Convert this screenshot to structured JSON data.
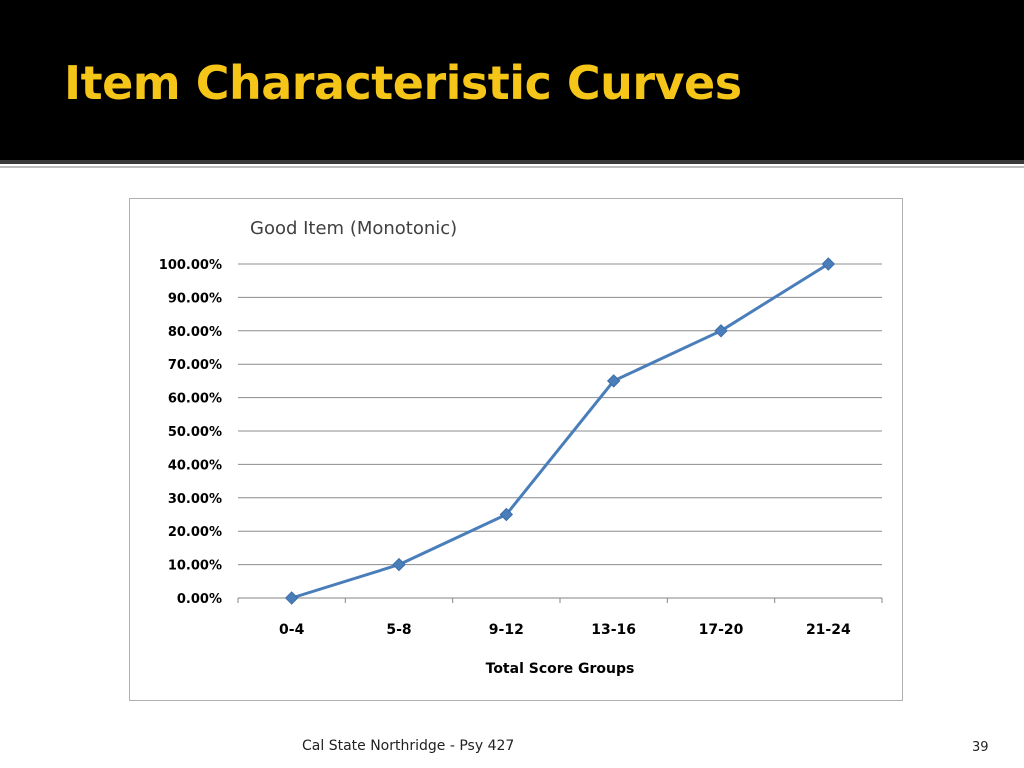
{
  "slide": {
    "title": "Item Characteristic Curves",
    "footer": "Cal State Northridge - Psy 427",
    "page_number": "39"
  },
  "colors": {
    "title_bar": "#000000",
    "title_text": "#f5c518",
    "series_line": "#4a7ebb"
  },
  "chart_data": {
    "type": "line",
    "title": "Good Item (Monotonic)",
    "xlabel": "Total Score Groups",
    "ylabel": "",
    "categories": [
      "0-4",
      "5-8",
      "9-12",
      "13-16",
      "17-20",
      "21-24"
    ],
    "series": [
      {
        "values": [
          0,
          10,
          25,
          65,
          80,
          100
        ],
        "marker": "diamond"
      }
    ],
    "ylim": [
      0,
      100
    ],
    "yticks": [
      "0.00%",
      "10.00%",
      "20.00%",
      "30.00%",
      "40.00%",
      "50.00%",
      "60.00%",
      "70.00%",
      "80.00%",
      "90.00%",
      "100.00%"
    ],
    "grid": "horizontal",
    "legend": "none"
  }
}
